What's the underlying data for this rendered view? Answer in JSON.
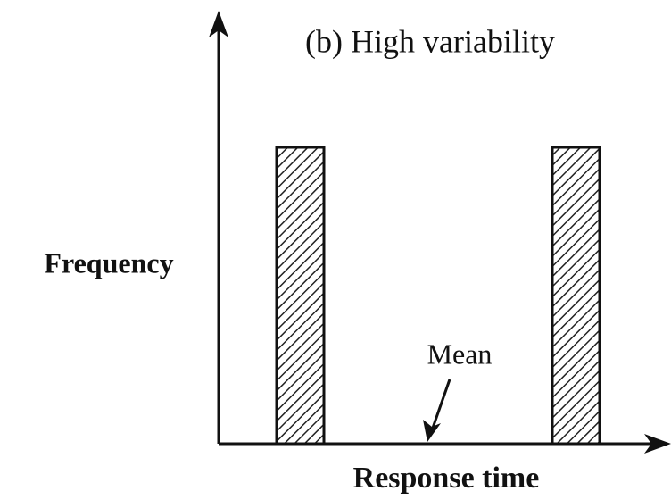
{
  "title": "(b) High variability",
  "y_label": "Frequency",
  "x_label": "Response time",
  "annotation": "Mean"
}
